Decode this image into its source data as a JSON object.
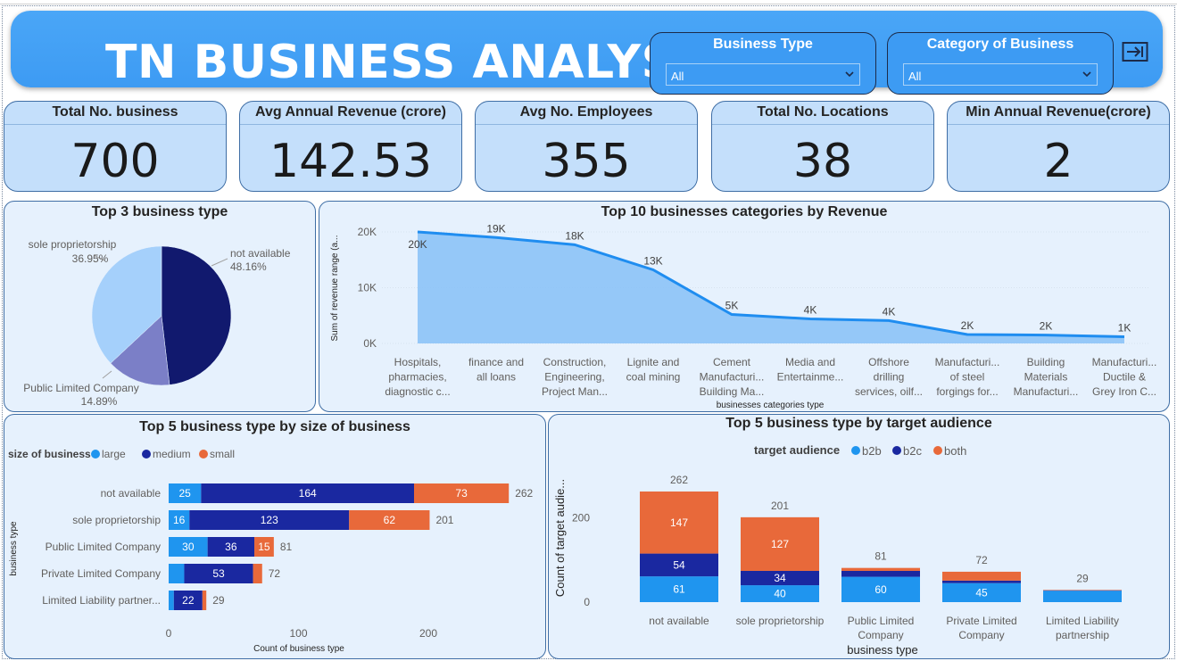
{
  "header": {
    "title": "TN BUSINESS ANALYSIS",
    "slicers": [
      {
        "label": "Business Type",
        "value": "All"
      },
      {
        "label": "Category of Business",
        "value": "All"
      }
    ],
    "exit_icon": "exit-arrow-icon"
  },
  "cards": [
    {
      "label": "Total No. business",
      "value": "700"
    },
    {
      "label": "Avg Annual Revenue (crore)",
      "value": "142.53"
    },
    {
      "label": "Avg No. Employees",
      "value": "355"
    },
    {
      "label": "Total No. Locations",
      "value": "38"
    },
    {
      "label": "Min Annual Revenue(crore)",
      "value": "2"
    }
  ],
  "colors": {
    "accent": "#3d9bf3",
    "pie": [
      "#11196e",
      "#7b7fc7",
      "#a5d0fb"
    ],
    "area_fill": "#8cc3f7",
    "area_line": "#1f8df0",
    "large_b2b": "#1f95ef",
    "medium_b2c": "#1a28a0",
    "small_both": "#e8693a"
  },
  "chart_data": [
    {
      "id": "pie",
      "type": "pie",
      "title": "Top 3 business type",
      "slices": [
        {
          "label": "not available",
          "pct": "48.16%",
          "value": 48.16
        },
        {
          "label": "Public Limited Company",
          "pct": "14.89%",
          "value": 14.89
        },
        {
          "label": "sole proprietorship",
          "pct": "36.95%",
          "value": 36.95
        }
      ]
    },
    {
      "id": "area",
      "type": "area",
      "title": "Top 10 businesses categories by Revenue",
      "xlabel": "businesses categories type",
      "ylabel": "Sum of revenue range (a...",
      "ylim": [
        0,
        20000
      ],
      "yticks": [
        "0K",
        "10K",
        "20K"
      ],
      "categories": [
        [
          "Hospitals,",
          "pharmacies,",
          "diagnostic c..."
        ],
        [
          "finance and",
          "all loans"
        ],
        [
          "Construction,",
          "Engineering,",
          "Project Man..."
        ],
        [
          "Lignite and",
          "coal mining"
        ],
        [
          "Cement",
          "Manufacturi...",
          "Building Ma..."
        ],
        [
          "Media and",
          "Entertainme..."
        ],
        [
          "Offshore",
          "drilling",
          "services, oilf..."
        ],
        [
          "Manufacturi...",
          "of steel",
          "forgings for..."
        ],
        [
          "Building",
          "Materials",
          "Manufacturi..."
        ],
        [
          "Manufacturi...",
          "Ductile &",
          "Grey Iron C..."
        ]
      ],
      "values": [
        20000,
        19000,
        17700,
        13200,
        5200,
        4400,
        4100,
        1600,
        1500,
        1200
      ],
      "labels": [
        "20K",
        "19K",
        "18K",
        "13K",
        "5K",
        "4K",
        "4K",
        "2K",
        "2K",
        "1K"
      ]
    },
    {
      "id": "hbar",
      "type": "bar",
      "orientation": "horizontal",
      "stacked": true,
      "title": "Top 5 business type by size of business",
      "legend_title": "size of business",
      "xlabel": "Count of business type",
      "ylabel": "business type",
      "xlim": [
        0,
        262
      ],
      "xticks": [
        "0",
        "100",
        "200"
      ],
      "categories": [
        "not available",
        "sole proprietorship",
        "Public Limited Company",
        "Private Limited Company",
        "Limited Liability partner..."
      ],
      "series": [
        {
          "name": "large",
          "values": [
            25,
            16,
            30,
            12,
            4
          ]
        },
        {
          "name": "medium",
          "values": [
            164,
            123,
            36,
            53,
            22
          ]
        },
        {
          "name": "small",
          "values": [
            73,
            62,
            15,
            7,
            3
          ]
        }
      ],
      "totals": [
        262,
        201,
        81,
        72,
        29
      ]
    },
    {
      "id": "vbar",
      "type": "bar",
      "orientation": "vertical",
      "stacked": true,
      "title": "Top 5 business type by target audience",
      "legend_title": "target audience",
      "xlabel": "business type",
      "ylabel": "Count of target audie...",
      "ylim": [
        0,
        262
      ],
      "yticks": [
        "0",
        "200"
      ],
      "categories": [
        [
          "not available"
        ],
        [
          "sole proprietorship"
        ],
        [
          "Public Limited",
          "Company"
        ],
        [
          "Private Limited",
          "Company"
        ],
        [
          "Limited Liability",
          "partnership"
        ]
      ],
      "series": [
        {
          "name": "b2b",
          "values": [
            61,
            40,
            60,
            45,
            27
          ]
        },
        {
          "name": "b2c",
          "values": [
            54,
            34,
            14,
            6,
            1
          ]
        },
        {
          "name": "both",
          "values": [
            147,
            127,
            7,
            21,
            1
          ]
        }
      ],
      "totals": [
        262,
        201,
        81,
        72,
        29
      ]
    }
  ]
}
